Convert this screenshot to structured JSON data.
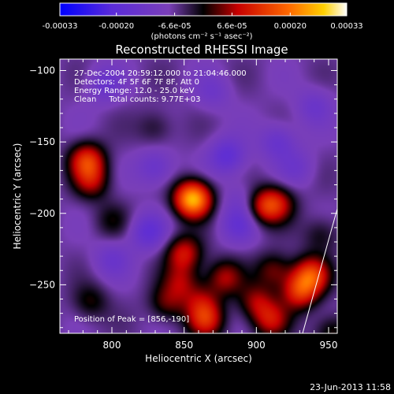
{
  "colorbar": {
    "ticks": [
      "-0.00033",
      "-0.00020",
      "-6.6e-05",
      "6.6e-05",
      "0.00020",
      "0.00033"
    ],
    "units": "(photons cm⁻² s⁻¹ asec⁻²)",
    "range": [
      -0.00033,
      0.00033
    ]
  },
  "chart_data": {
    "type": "heatmap",
    "title": "Reconstructed RHESSI Image",
    "xlabel": "Heliocentric X (arcsec)",
    "ylabel": "Heliocentric Y (arcsec)",
    "xlim": [
      764,
      956
    ],
    "ylim": [
      -284,
      -92
    ],
    "x_ticks": [
      800,
      850,
      900,
      950
    ],
    "y_ticks": [
      -100,
      -150,
      -200,
      -250
    ],
    "annotations": [
      "27-Dec-2004 20:59:12.000 to 21:04:46.000",
      "Detectors: 4F 5F 6F 7F 8F, Att 0",
      "Energy Range: 12.0 - 25.0 keV",
      "Clean     Total counts: 9.77E+03"
    ],
    "peak_label": "Position of Peak = [856,-190]",
    "peak": [
      856,
      -190
    ],
    "sources": [
      {
        "x": 856,
        "y": -190,
        "flux": 0.00033
      },
      {
        "x": 783,
        "y": -163,
        "flux": 0.00019
      },
      {
        "x": 786,
        "y": -178,
        "flux": 0.00012
      },
      {
        "x": 905,
        "y": -195,
        "flux": 0.00015
      },
      {
        "x": 915,
        "y": -193,
        "flux": 0.00012
      },
      {
        "x": 850,
        "y": -228,
        "flux": 0.00016
      },
      {
        "x": 848,
        "y": -248,
        "flux": 0.00011
      },
      {
        "x": 862,
        "y": -262,
        "flux": 0.0001
      },
      {
        "x": 878,
        "y": -245,
        "flux": 0.00013
      },
      {
        "x": 912,
        "y": -240,
        "flux": 0.00011
      },
      {
        "x": 900,
        "y": -262,
        "flux": 0.00012
      },
      {
        "x": 938,
        "y": -243,
        "flux": 0.0002
      },
      {
        "x": 930,
        "y": -255,
        "flux": 0.00018
      },
      {
        "x": 910,
        "y": -275,
        "flux": 0.00014
      },
      {
        "x": 865,
        "y": -275,
        "flux": 0.00016
      },
      {
        "x": 838,
        "y": -263,
        "flux": 0.0001
      },
      {
        "x": 785,
        "y": -262,
        "flux": 8e-05
      },
      {
        "x": 830,
        "y": -140,
        "flux": 6e-05
      },
      {
        "x": 800,
        "y": -205,
        "flux": 6e-05
      },
      {
        "x": 945,
        "y": -215,
        "flux": 7e-05
      },
      {
        "x": 952,
        "y": -283,
        "flux": 9e-05
      },
      {
        "x": 825,
        "y": -213,
        "flux": -0.00011
      },
      {
        "x": 880,
        "y": -160,
        "flux": -0.00012
      },
      {
        "x": 830,
        "y": -168,
        "flux": -9e-05
      },
      {
        "x": 915,
        "y": -150,
        "flux": -9e-05
      },
      {
        "x": 795,
        "y": -110,
        "flux": -8e-05
      },
      {
        "x": 870,
        "y": -115,
        "flux": -6e-05
      },
      {
        "x": 940,
        "y": -125,
        "flux": -7e-05
      },
      {
        "x": 888,
        "y": -208,
        "flux": -9e-05
      },
      {
        "x": 800,
        "y": -232,
        "flux": -7e-05
      },
      {
        "x": 890,
        "y": -190,
        "flux": -5e-05
      },
      {
        "x": 928,
        "y": -168,
        "flux": -6e-05
      }
    ]
  },
  "footer": {
    "timestamp": "23-Jun-2013 11:58"
  }
}
